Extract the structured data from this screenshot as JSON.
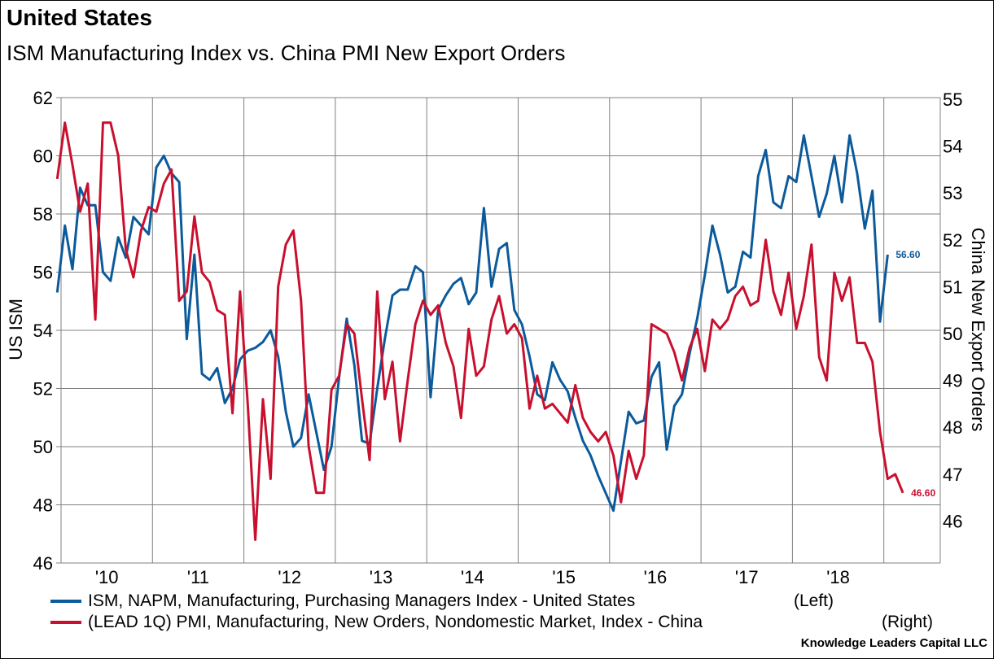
{
  "header": {
    "title": "United States",
    "subtitle": "ISM Manufacturing Index vs. China PMI New Export Orders"
  },
  "credit": "Knowledge Leaders Capital LLC",
  "chart_data": {
    "type": "line",
    "title": "United States",
    "subtitle": "ISM Manufacturing Index vs. China PMI New Export Orders",
    "x_start": "2009-12",
    "x_frequency": "monthly",
    "x_ticks": [
      "'10",
      "'11",
      "'12",
      "'13",
      "'14",
      "'15",
      "'16",
      "'17",
      "'18"
    ],
    "ylabel_left": "US ISM",
    "ylabel_right": "China New Export Orders",
    "ylim_left": [
      46,
      62
    ],
    "yticks_left": [
      46,
      48,
      50,
      52,
      54,
      56,
      58,
      60,
      62
    ],
    "ylim_right": [
      45.1,
      55
    ],
    "yticks_right": [
      46,
      47,
      48,
      49,
      50,
      51,
      52,
      53,
      54,
      55
    ],
    "grid": true,
    "legend_position": "bottom",
    "series": [
      {
        "name": "ISM, NAPM, Manufacturing, Purchasing Managers Index - United States",
        "side_label": "(Left)",
        "axis": "left",
        "color": "#0b5a9b",
        "last_value_label": "56.60",
        "values": [
          55.3,
          57.6,
          56.1,
          58.9,
          58.3,
          58.3,
          56.0,
          55.7,
          57.2,
          56.5,
          57.9,
          57.6,
          57.3,
          59.6,
          60.0,
          59.4,
          59.1,
          53.7,
          56.6,
          52.5,
          52.3,
          52.7,
          51.5,
          52.0,
          53.0,
          53.3,
          53.4,
          53.6,
          54.0,
          53.1,
          51.2,
          50.0,
          50.3,
          51.8,
          50.5,
          49.2,
          50.0,
          52.4,
          54.4,
          52.8,
          50.2,
          50.1,
          52.0,
          53.7,
          55.2,
          55.4,
          55.4,
          56.2,
          56.0,
          51.7,
          54.7,
          55.2,
          55.6,
          55.8,
          54.9,
          55.3,
          58.2,
          55.5,
          56.8,
          57.0,
          54.7,
          54.2,
          53.1,
          51.8,
          51.6,
          52.9,
          52.3,
          51.9,
          51.0,
          50.2,
          49.7,
          49.0,
          48.4,
          47.8,
          49.5,
          51.2,
          50.8,
          50.9,
          52.4,
          52.9,
          49.9,
          51.4,
          51.8,
          53.2,
          54.4,
          55.9,
          57.6,
          56.6,
          55.3,
          55.5,
          56.7,
          56.5,
          59.3,
          60.2,
          58.4,
          58.2,
          59.3,
          59.1,
          60.7,
          59.3,
          57.9,
          58.7,
          60.0,
          58.4,
          60.7,
          59.4,
          57.5,
          58.8,
          54.3,
          56.6
        ]
      },
      {
        "name": "(LEAD 1Q) PMI, Manufacturing, New Orders, Nondomestic Market, Index - China",
        "side_label": "(Right)",
        "axis": "right",
        "color": "#c8102e",
        "last_value_label": "46.60",
        "values": [
          53.3,
          54.5,
          53.6,
          52.6,
          53.2,
          50.3,
          54.5,
          54.5,
          53.8,
          51.8,
          51.2,
          52.2,
          52.7,
          52.6,
          53.2,
          53.5,
          50.7,
          50.9,
          52.5,
          51.3,
          51.1,
          50.5,
          50.4,
          48.3,
          50.9,
          48.5,
          45.6,
          48.6,
          46.9,
          51.0,
          51.9,
          52.2,
          50.7,
          47.6,
          46.6,
          46.6,
          48.8,
          49.1,
          50.2,
          50.0,
          48.6,
          47.3,
          50.9,
          48.6,
          49.4,
          47.7,
          49.0,
          50.2,
          50.7,
          50.4,
          50.6,
          49.8,
          49.3,
          48.2,
          50.1,
          49.1,
          49.3,
          50.3,
          50.8,
          50.0,
          50.2,
          49.9,
          48.4,
          49.1,
          48.4,
          48.5,
          48.3,
          48.1,
          48.9,
          48.2,
          47.9,
          47.7,
          47.9,
          47.4,
          46.4,
          47.5,
          46.9,
          47.4,
          50.2,
          50.1,
          50.0,
          49.6,
          49.0,
          49.7,
          50.1,
          49.2,
          50.3,
          50.1,
          50.3,
          50.8,
          51.0,
          50.6,
          50.7,
          52.0,
          50.9,
          50.4,
          51.3,
          50.1,
          50.8,
          51.9,
          49.5,
          49.0,
          51.3,
          50.7,
          51.2,
          49.8,
          49.8,
          49.4,
          47.9,
          46.9,
          47.0,
          46.6
        ]
      }
    ]
  }
}
